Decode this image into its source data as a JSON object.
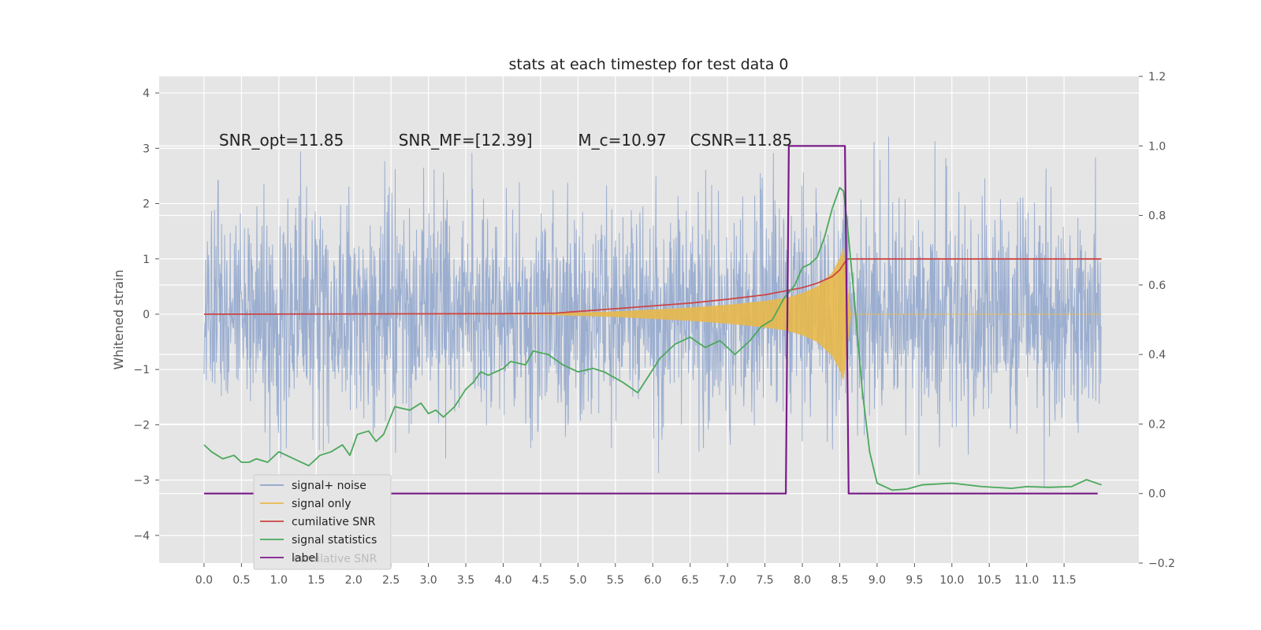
{
  "chart_data": {
    "type": "line",
    "title": "stats at each timestep for test data 0",
    "ylabel": "Whitened strain",
    "xlim": [
      -0.6,
      12.5
    ],
    "ylim": [
      -4.5,
      4.3
    ],
    "y2lim": [
      -0.2,
      1.2
    ],
    "x_ticks": [
      "0.0",
      "0.5",
      "1.0",
      "1.5",
      "2.0",
      "2.5",
      "3.0",
      "3.5",
      "4.0",
      "4.5",
      "5.0",
      "5.5",
      "6.0",
      "6.5",
      "7.0",
      "7.5",
      "8.0",
      "8.5",
      "9.0",
      "9.5",
      "10.0",
      "10.5",
      "11.0",
      "11.5"
    ],
    "y_ticks": [
      "4",
      "3",
      "2",
      "1",
      "0",
      "−1",
      "−2",
      "−3",
      "−4"
    ],
    "y2_ticks": [
      "1.2",
      "1.0",
      "0.8",
      "0.6",
      "0.4",
      "0.2",
      "0.0",
      "−0.2"
    ],
    "grid": true,
    "legend_position": "lower-left",
    "annotations": [
      {
        "text": "SNR_opt=11.85",
        "x": 0.2,
        "y": 3.05
      },
      {
        "text": "SNR_MF=[12.39]",
        "x": 2.6,
        "y": 3.05
      },
      {
        "text": "M_c=10.97",
        "x": 5.0,
        "y": 3.05
      },
      {
        "text": "CSNR=11.85",
        "x": 6.5,
        "y": 3.05
      }
    ],
    "ghost_legend_text": "cumilative SNR",
    "series": [
      {
        "name": "signal+ noise",
        "color": "#8ea4cc",
        "axis": "left",
        "noise_sigma": 1.0,
        "x_range": [
          0.0,
          12.0
        ]
      },
      {
        "name": "signal only",
        "color": "#e8b84a",
        "axis": "left",
        "envelope_x": [
          4.5,
          5.5,
          6.5,
          7.0,
          7.5,
          7.8,
          8.0,
          8.2,
          8.4,
          8.5,
          8.55,
          8.6,
          8.65
        ],
        "envelope_y": [
          0.01,
          0.05,
          0.12,
          0.17,
          0.24,
          0.3,
          0.38,
          0.5,
          0.75,
          1.0,
          1.2,
          0.6,
          0.0
        ],
        "x_range": [
          0.0,
          12.0
        ]
      },
      {
        "name": "cumilative SNR",
        "color": "#cc4444",
        "axis": "left",
        "x": [
          0.0,
          2.0,
          4.0,
          4.7,
          5.5,
          6.5,
          7.0,
          7.5,
          8.0,
          8.2,
          8.4,
          8.5,
          8.6,
          9.0,
          10.0,
          11.0,
          12.0
        ],
        "y": [
          0.0,
          0.005,
          0.01,
          0.02,
          0.1,
          0.2,
          0.27,
          0.35,
          0.48,
          0.56,
          0.68,
          0.8,
          1.0,
          1.0,
          1.0,
          1.0,
          1.0
        ]
      },
      {
        "name": "signal statistics",
        "color": "#4aa85a",
        "axis": "right",
        "x": [
          0.0,
          0.1,
          0.25,
          0.4,
          0.5,
          0.6,
          0.7,
          0.85,
          1.0,
          1.2,
          1.4,
          1.55,
          1.7,
          1.85,
          1.95,
          2.05,
          2.2,
          2.3,
          2.4,
          2.55,
          2.75,
          2.9,
          3.0,
          3.1,
          3.2,
          3.35,
          3.5,
          3.6,
          3.7,
          3.8,
          4.0,
          4.1,
          4.3,
          4.4,
          4.6,
          4.8,
          5.0,
          5.2,
          5.35,
          5.6,
          5.8,
          5.95,
          6.1,
          6.3,
          6.5,
          6.7,
          6.9,
          7.1,
          7.3,
          7.45,
          7.6,
          7.75,
          7.9,
          8.0,
          8.1,
          8.2,
          8.3,
          8.4,
          8.5,
          8.55,
          8.6,
          8.7,
          8.8,
          8.9,
          9.0,
          9.2,
          9.4,
          9.6,
          10.0,
          10.4,
          10.8,
          11.0,
          11.3,
          11.6,
          11.8,
          12.0
        ],
        "y": [
          0.14,
          0.12,
          0.1,
          0.11,
          0.09,
          0.09,
          0.1,
          0.09,
          0.12,
          0.1,
          0.08,
          0.11,
          0.12,
          0.14,
          0.11,
          0.17,
          0.18,
          0.15,
          0.17,
          0.25,
          0.24,
          0.26,
          0.23,
          0.24,
          0.22,
          0.25,
          0.3,
          0.32,
          0.35,
          0.34,
          0.36,
          0.38,
          0.37,
          0.41,
          0.4,
          0.37,
          0.35,
          0.36,
          0.35,
          0.32,
          0.29,
          0.34,
          0.39,
          0.43,
          0.45,
          0.42,
          0.44,
          0.4,
          0.44,
          0.48,
          0.5,
          0.56,
          0.6,
          0.65,
          0.66,
          0.68,
          0.74,
          0.82,
          0.88,
          0.87,
          0.78,
          0.55,
          0.3,
          0.12,
          0.03,
          0.01,
          0.013,
          0.025,
          0.03,
          0.02,
          0.015,
          0.02,
          0.018,
          0.02,
          0.04,
          0.025
        ]
      },
      {
        "name": "label",
        "color": "#7a1a8a",
        "axis": "right",
        "x": [
          0.0,
          7.78,
          7.82,
          8.57,
          8.62,
          11.95
        ],
        "y": [
          0.0,
          0.0,
          1.0,
          1.0,
          0.0,
          0.0
        ]
      }
    ]
  }
}
